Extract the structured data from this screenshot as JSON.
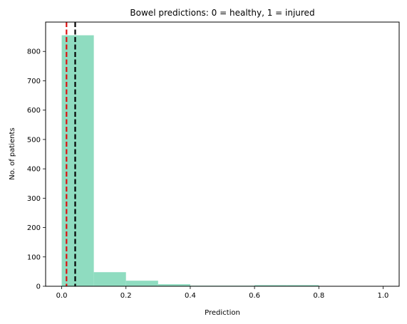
{
  "chart_data": {
    "type": "bar",
    "title": "Bowel predictions: 0 = healthy, 1 = injured",
    "xlabel": "Prediction",
    "ylabel": "No. of patients",
    "xlim": [
      -0.05,
      1.05
    ],
    "ylim": [
      0,
      900
    ],
    "xticks": [
      0.0,
      0.2,
      0.4,
      0.6,
      0.8,
      1.0
    ],
    "xtick_labels": [
      "0.0",
      "0.2",
      "0.4",
      "0.6",
      "0.8",
      "1.0"
    ],
    "yticks": [
      0,
      100,
      200,
      300,
      400,
      500,
      600,
      700,
      800
    ],
    "ytick_labels": [
      "0",
      "100",
      "200",
      "300",
      "400",
      "500",
      "600",
      "700",
      "800"
    ],
    "bin_edges": [
      0.0,
      0.1,
      0.2,
      0.3,
      0.4,
      0.5,
      0.6,
      0.7,
      0.8,
      0.9,
      1.0
    ],
    "counts": [
      855,
      48,
      19,
      7,
      2,
      2,
      4,
      4,
      0,
      0
    ],
    "bar_color": "#8fdcc0",
    "vlines": [
      {
        "x": 0.015,
        "color": "#dd1111",
        "style": "dashed"
      },
      {
        "x": 0.042,
        "color": "#000000",
        "style": "dashed"
      }
    ],
    "grid": false,
    "legend": "none"
  }
}
